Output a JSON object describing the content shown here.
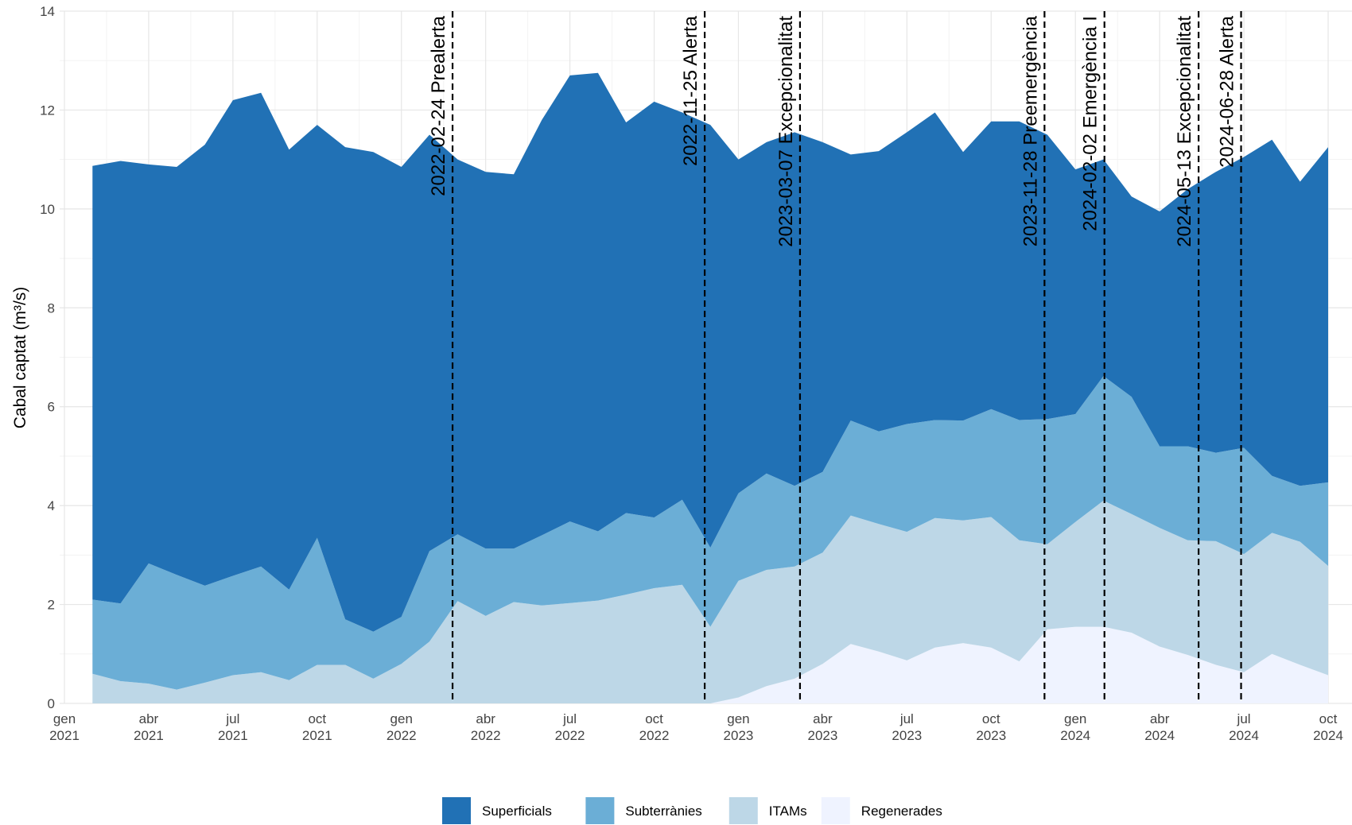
{
  "chart_data": {
    "type": "stacked_area",
    "y_label": "Cabal captat (m³/s)",
    "x": [
      "2021-02",
      "2021-03",
      "2021-04",
      "2021-05",
      "2021-06",
      "2021-07",
      "2021-08",
      "2021-09",
      "2021-10",
      "2021-11",
      "2021-12",
      "2022-01",
      "2022-02",
      "2022-03",
      "2022-04",
      "2022-05",
      "2022-06",
      "2022-07",
      "2022-08",
      "2022-09",
      "2022-10",
      "2022-11",
      "2022-12",
      "2023-01",
      "2023-02",
      "2023-03",
      "2023-04",
      "2023-05",
      "2023-06",
      "2023-07",
      "2023-08",
      "2023-09",
      "2023-10",
      "2023-11",
      "2023-12",
      "2024-01",
      "2024-02",
      "2024-03",
      "2024-04",
      "2024-05",
      "2024-06",
      "2024-07",
      "2024-08",
      "2024-09",
      "2024-10"
    ],
    "series": [
      {
        "name": "Regenerades",
        "color": "#eff3ff",
        "values": [
          0,
          0,
          0,
          0,
          0,
          0,
          0,
          0,
          0,
          0,
          0,
          0,
          0,
          0,
          0,
          0,
          0,
          0,
          0,
          0,
          0,
          0,
          0,
          0.12,
          0.35,
          0.5,
          0.8,
          1.2,
          1.05,
          0.87,
          1.13,
          1.22,
          1.13,
          0.85,
          1.5,
          1.55,
          1.55,
          1.43,
          1.15,
          0.98,
          0.78,
          0.63,
          1.0,
          0.78,
          0.57
        ]
      },
      {
        "name": "ITAMs",
        "color": "#bdd7e7",
        "values": [
          0.6,
          0.45,
          0.4,
          0.28,
          0.42,
          0.57,
          0.63,
          0.47,
          0.78,
          0.78,
          0.5,
          0.8,
          1.25,
          2.07,
          1.77,
          2.05,
          1.98,
          2.03,
          2.08,
          2.2,
          2.33,
          2.4,
          1.55,
          2.36,
          2.35,
          2.27,
          2.25,
          2.6,
          2.58,
          2.6,
          2.62,
          2.48,
          2.64,
          2.45,
          1.72,
          2.12,
          2.55,
          2.4,
          2.4,
          2.32,
          2.5,
          2.39,
          2.45,
          2.49,
          2.21
        ]
      },
      {
        "name": "Subterrànies",
        "color": "#6baed6",
        "values": [
          1.5,
          1.57,
          2.43,
          2.32,
          1.96,
          2.01,
          2.14,
          1.83,
          2.57,
          0.92,
          0.95,
          0.95,
          1.83,
          1.35,
          1.36,
          1.08,
          1.42,
          1.65,
          1.4,
          1.65,
          1.43,
          1.72,
          1.6,
          1.77,
          1.95,
          1.63,
          1.63,
          1.92,
          1.87,
          2.18,
          1.98,
          2.02,
          2.18,
          2.43,
          2.53,
          2.18,
          2.52,
          2.37,
          1.65,
          1.9,
          1.79,
          2.15,
          1.15,
          1.13,
          1.69
        ]
      },
      {
        "name": "Superficials",
        "color": "#2171b5",
        "values": [
          8.77,
          8.95,
          8.07,
          8.25,
          8.92,
          9.62,
          9.58,
          8.9,
          8.35,
          9.55,
          9.7,
          9.1,
          8.42,
          7.58,
          7.62,
          7.57,
          8.4,
          9.02,
          9.27,
          7.9,
          8.41,
          7.83,
          8.55,
          6.75,
          6.7,
          7.15,
          6.67,
          5.38,
          5.67,
          5.9,
          6.22,
          5.43,
          5.82,
          6.04,
          5.75,
          4.95,
          4.38,
          4.05,
          4.75,
          5.2,
          5.68,
          5.88,
          6.8,
          6.15,
          6.78
        ]
      }
    ],
    "legend_order": [
      3,
      2,
      1,
      0
    ],
    "xlim": [
      "2021-01",
      "2024-10"
    ],
    "xticks": [
      {
        "value": "2021-01",
        "label": [
          "gen",
          "2021"
        ]
      },
      {
        "value": "2021-04",
        "label": [
          "abr",
          "2021"
        ]
      },
      {
        "value": "2021-07",
        "label": [
          "jul",
          "2021"
        ]
      },
      {
        "value": "2021-10",
        "label": [
          "oct",
          "2021"
        ]
      },
      {
        "value": "2022-01",
        "label": [
          "gen",
          "2022"
        ]
      },
      {
        "value": "2022-04",
        "label": [
          "abr",
          "2022"
        ]
      },
      {
        "value": "2022-07",
        "label": [
          "jul",
          "2022"
        ]
      },
      {
        "value": "2022-10",
        "label": [
          "oct",
          "2022"
        ]
      },
      {
        "value": "2023-01",
        "label": [
          "gen",
          "2023"
        ]
      },
      {
        "value": "2023-04",
        "label": [
          "abr",
          "2023"
        ]
      },
      {
        "value": "2023-07",
        "label": [
          "jul",
          "2023"
        ]
      },
      {
        "value": "2023-10",
        "label": [
          "oct",
          "2023"
        ]
      },
      {
        "value": "2024-01",
        "label": [
          "gen",
          "2024"
        ]
      },
      {
        "value": "2024-04",
        "label": [
          "abr",
          "2024"
        ]
      },
      {
        "value": "2024-07",
        "label": [
          "jul",
          "2024"
        ]
      },
      {
        "value": "2024-10",
        "label": [
          "oct",
          "2024"
        ]
      }
    ],
    "ylim": [
      0,
      14
    ],
    "yticks": [
      0,
      2,
      4,
      6,
      8,
      10,
      12,
      14
    ],
    "grid": true,
    "legend_position": "bottom",
    "annotations": [
      {
        "x": "2022-02-24",
        "label": "2022-02-24 Prealerta"
      },
      {
        "x": "2022-11-25",
        "label": "2022-11-25 Alerta"
      },
      {
        "x": "2023-03-07",
        "label": "2023-03-07 Excepcionalitat"
      },
      {
        "x": "2023-11-28",
        "label": "2023-11-28 Preemergència"
      },
      {
        "x": "2024-02-02",
        "label": "2024-02-02 Emergència I"
      },
      {
        "x": "2024-05-13",
        "label": "2024-05-13 Excepcionalitat"
      },
      {
        "x": "2024-06-28",
        "label": "2024-06-28 Alerta"
      }
    ]
  }
}
